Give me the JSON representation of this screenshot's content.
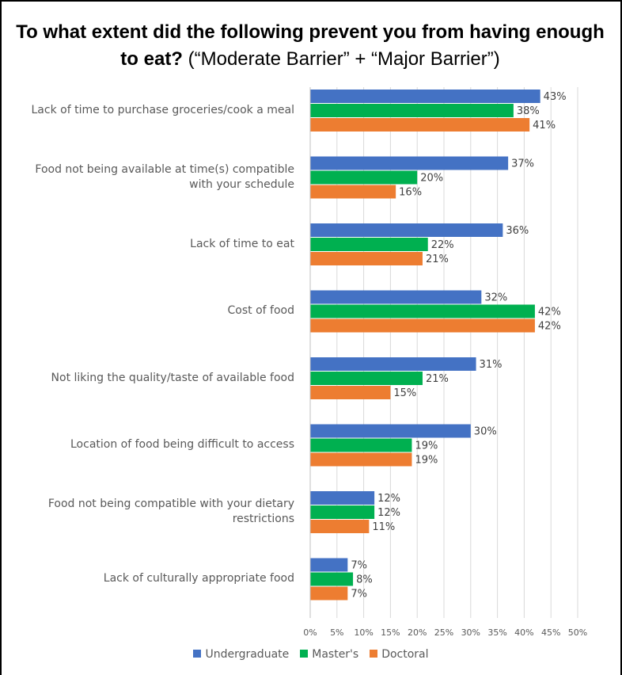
{
  "chart_data": {
    "type": "bar",
    "orientation": "horizontal",
    "title_bold": "To what extent did the following prevent you from having enough to eat?",
    "title_rest": " (“Moderate Barrier” + “Major Barrier”)",
    "categories": [
      "Lack of time to purchase groceries/cook a meal",
      "Food not being available at time(s) compatible with your schedule",
      "Lack of time to eat",
      "Cost of food",
      "Not liking the quality/taste of available food",
      "Location of food being difficult to access",
      "Food not being compatible with your dietary restrictions",
      "Lack of culturally appropriate food"
    ],
    "series": [
      {
        "name": "Undergraduate",
        "color": "#4472C4",
        "values": [
          43,
          37,
          36,
          32,
          31,
          30,
          12,
          7
        ]
      },
      {
        "name": "Master's",
        "color": "#00B050",
        "values": [
          38,
          20,
          22,
          42,
          21,
          19,
          12,
          8
        ]
      },
      {
        "name": "Doctoral",
        "color": "#ED7D31",
        "values": [
          41,
          16,
          21,
          42,
          15,
          19,
          11,
          7
        ]
      }
    ],
    "xlim": [
      0,
      50
    ],
    "xticks": [
      "0%",
      "5%",
      "10%",
      "15%",
      "20%",
      "25%",
      "30%",
      "35%",
      "40%",
      "45%",
      "50%"
    ],
    "value_suffix": "%",
    "grid": true,
    "legend_position": "bottom"
  }
}
